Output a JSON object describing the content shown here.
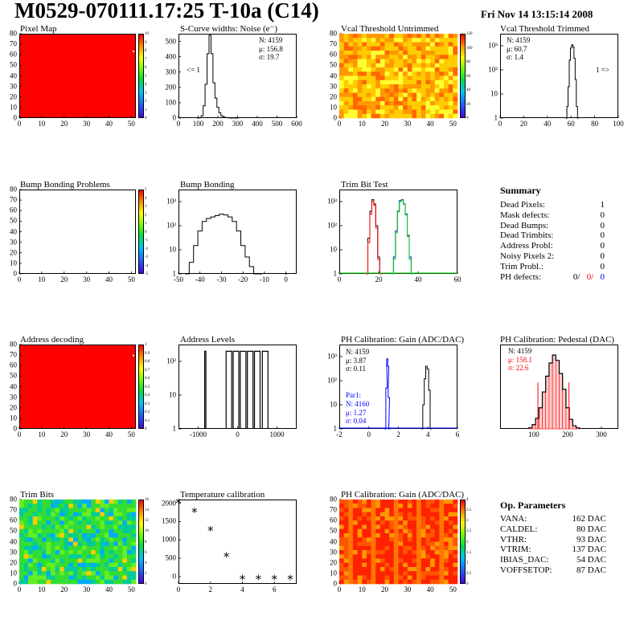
{
  "header": {
    "title": "M0529-070111.17:25 T-10a (C14)",
    "date": "Fri Nov 14 13:15:14 2008"
  },
  "panels": {
    "pixel_map": {
      "title": "Pixel Map"
    },
    "scurve": {
      "title": "S-Curve widths: Noise (e⁻)",
      "n": "N: 4159",
      "mu": "μ: 156.8",
      "sigma": "σ: 19.7",
      "underflow": "<= 1"
    },
    "vcal_untrimmed": {
      "title": "Vcal Threshold Untrimmed"
    },
    "vcal_trimmed": {
      "title": "Vcal Threshold Trimmed",
      "n": "N: 4159",
      "mu": "μ: 60.7",
      "sigma": "σ:  1.4",
      "overflow": "1 =>"
    },
    "bump_problems": {
      "title": "Bump Bonding Problems"
    },
    "bump_bonding": {
      "title": "Bump Bonding"
    },
    "trim_bit_test": {
      "title": "Trim Bit Test"
    },
    "address_decoding": {
      "title": "Address decoding"
    },
    "address_levels": {
      "title": "Address Levels"
    },
    "ph_gain": {
      "title": "PH Calibration: Gain (ADC/DAC)",
      "n": "N: 4159",
      "mu": "μ: 3.87",
      "sigma": "σ: 0.11",
      "par1_label": "Par1:",
      "par1_n": "N: 4160",
      "par1_mu": "μ: 1.27",
      "par1_sigma": "σ: 0.04"
    },
    "ph_pedestal": {
      "title": "PH Calibration: Pedestal (DAC)",
      "n": "N: 4159",
      "mu": "μ: 158.1",
      "sigma": "σ: 22.6"
    },
    "trim_bits": {
      "title": "Trim Bits"
    },
    "temperature": {
      "title": "Temperature calibration"
    },
    "ph_gain_map": {
      "title": "PH Calibration: Gain (ADC/DAC)"
    }
  },
  "summary": {
    "heading": "Summary",
    "rows": [
      {
        "label": "Dead Pixels:",
        "value": "1"
      },
      {
        "label": "Mask defects:",
        "value": "0"
      },
      {
        "label": "Dead Bumps:",
        "value": "0"
      },
      {
        "label": "Dead Trimbits:",
        "value": "0"
      },
      {
        "label": "Address Probl:",
        "value": "0"
      },
      {
        "label": "Noisy Pixels 2:",
        "value": "0"
      },
      {
        "label": "Trim Probl.:",
        "value": "0"
      }
    ],
    "ph_label": "PH defects:",
    "ph_values": [
      "0/",
      "0/",
      "0"
    ]
  },
  "op_parameters": {
    "heading": "Op. Parameters",
    "rows": [
      {
        "label": "VANA:",
        "value": "162 DAC"
      },
      {
        "label": "CALDEL:",
        "value": "80 DAC"
      },
      {
        "label": "VTHR:",
        "value": "93 DAC"
      },
      {
        "label": "VTRIM:",
        "value": "137 DAC"
      },
      {
        "label": "IBIAS_DAC:",
        "value": "54 DAC"
      },
      {
        "label": "VOFFSETOP:",
        "value": "87 DAC"
      }
    ]
  },
  "colors": {
    "red": "#ff0000",
    "blue": "#0000ff",
    "green": "#00cc00",
    "line": "#000000"
  },
  "chart_data": [
    {
      "id": "pixel_map",
      "type": "heatmap",
      "title": "Pixel Map",
      "xlim": [
        0,
        52
      ],
      "ylim": [
        0,
        80
      ],
      "xticks": [
        "0",
        "10",
        "20",
        "30",
        "40",
        "50"
      ],
      "yticks": [
        "0",
        "10",
        "20",
        "30",
        "40",
        "50",
        "60",
        "70",
        "80"
      ],
      "zticks": [
        "0",
        "1",
        "2",
        "3",
        "4",
        "5",
        "6",
        "7",
        "8",
        "9",
        "10"
      ],
      "fill": "uniform red (all pixels responding)"
    },
    {
      "id": "scurve",
      "type": "bar",
      "title": "S-Curve widths: Noise (e⁻)",
      "xlim": [
        0,
        600
      ],
      "ylim": [
        0,
        550
      ],
      "xticks": [
        "0",
        "100",
        "200",
        "300",
        "400",
        "500",
        "600"
      ],
      "yticks": [
        "0",
        "100",
        "200",
        "300",
        "400",
        "500"
      ],
      "x": [
        100,
        110,
        120,
        130,
        140,
        150,
        160,
        170,
        180,
        190,
        200,
        210,
        220,
        230,
        240,
        250,
        260,
        270,
        280,
        290,
        300
      ],
      "values": [
        0,
        2,
        15,
        80,
        220,
        420,
        540,
        420,
        230,
        130,
        70,
        35,
        15,
        8,
        4,
        2,
        1,
        0,
        1,
        0,
        0
      ]
    },
    {
      "id": "vcal_untrimmed",
      "type": "heatmap",
      "title": "Vcal Threshold Untrimmed",
      "xlim": [
        0,
        52
      ],
      "ylim": [
        0,
        80
      ],
      "xticks": [
        "0",
        "10",
        "20",
        "30",
        "40",
        "50"
      ],
      "yticks": [
        "0",
        "10",
        "20",
        "30",
        "40",
        "50",
        "60",
        "70",
        "80"
      ],
      "zticks": [
        "0",
        "20",
        "40",
        "60",
        "80",
        "100",
        "120"
      ],
      "fill": "mostly orange/yellow noise"
    },
    {
      "id": "vcal_trimmed",
      "type": "bar",
      "title": "Vcal Threshold Trimmed",
      "log_y": true,
      "xlim": [
        0,
        100
      ],
      "xticks": [
        "0",
        "20",
        "40",
        "60",
        "80",
        "100"
      ],
      "yticks": [
        "1",
        "10",
        "10²",
        "10³"
      ],
      "x": [
        56,
        57,
        58,
        59,
        60,
        61,
        62,
        63,
        64,
        65,
        66
      ],
      "values": [
        1,
        3,
        20,
        250,
        800,
        1100,
        900,
        300,
        40,
        3,
        1
      ]
    },
    {
      "id": "bump_problems",
      "type": "heatmap",
      "title": "Bump Bonding Problems",
      "xlim": [
        0,
        52
      ],
      "ylim": [
        0,
        80
      ],
      "xticks": [
        "0",
        "10",
        "20",
        "30",
        "40",
        "50"
      ],
      "yticks": [
        "0",
        "10",
        "20",
        "30",
        "40",
        "50",
        "60",
        "70",
        "80"
      ],
      "zticks": [
        "-5",
        "-4",
        "-3",
        "-2",
        "-1",
        "0",
        "1",
        "2",
        "3",
        "4",
        "5"
      ],
      "fill": "empty"
    },
    {
      "id": "bump_bonding",
      "type": "bar",
      "title": "Bump Bonding",
      "log_y": true,
      "xlim": [
        -50,
        5
      ],
      "xticks": [
        "-50",
        "-40",
        "-30",
        "-20",
        "-10",
        "0"
      ],
      "yticks": [
        "1",
        "10",
        "10²",
        "10³"
      ],
      "x": [
        -46,
        -44,
        -42,
        -40,
        -38,
        -36,
        -34,
        -32,
        -30,
        -28,
        -26,
        -24,
        -22,
        -20,
        -18,
        -16,
        -14,
        -12,
        0
      ],
      "values": [
        1,
        3,
        15,
        60,
        150,
        200,
        230,
        260,
        300,
        280,
        230,
        150,
        60,
        15,
        5,
        2,
        1,
        1,
        1
      ]
    },
    {
      "id": "trim_bit_test",
      "type": "line",
      "title": "Trim Bit Test",
      "log_y": true,
      "xlim": [
        0,
        60
      ],
      "xticks": [
        "0",
        "20",
        "40",
        "60"
      ],
      "yticks": [
        "1",
        "10",
        "10²",
        "10³"
      ],
      "series": [
        {
          "color": "black",
          "x": [
            14,
            15,
            16,
            17,
            18,
            19,
            20,
            21
          ],
          "values": [
            1,
            30,
            400,
            1200,
            800,
            100,
            5,
            1
          ]
        },
        {
          "color": "red",
          "x": [
            14,
            15,
            16,
            17,
            18,
            19,
            20,
            21
          ],
          "values": [
            1,
            20,
            300,
            1000,
            700,
            80,
            4,
            1
          ]
        },
        {
          "color": "blue",
          "x": [
            27,
            28,
            29,
            30,
            31,
            32,
            33,
            34,
            35,
            36,
            37
          ],
          "values": [
            1,
            5,
            60,
            400,
            1100,
            1200,
            800,
            300,
            40,
            5,
            1
          ]
        },
        {
          "color": "green",
          "x": [
            27,
            28,
            29,
            30,
            31,
            32,
            33,
            34,
            35,
            36,
            37
          ],
          "values": [
            1,
            4,
            50,
            380,
            1000,
            1150,
            780,
            280,
            35,
            4,
            1
          ]
        }
      ]
    },
    {
      "id": "address_decoding",
      "type": "heatmap",
      "title": "Address decoding",
      "xlim": [
        0,
        52
      ],
      "ylim": [
        0,
        80
      ],
      "xticks": [
        "0",
        "10",
        "20",
        "30",
        "40",
        "50"
      ],
      "yticks": [
        "0",
        "10",
        "20",
        "30",
        "40",
        "50",
        "60",
        "70",
        "80"
      ],
      "zticks": [
        "0",
        "0.1",
        "0.2",
        "0.3",
        "0.4",
        "0.5",
        "0.6",
        "0.7",
        "0.8",
        "0.9",
        "1"
      ],
      "fill": "uniform red"
    },
    {
      "id": "address_levels",
      "type": "bar",
      "title": "Address Levels",
      "log_y": true,
      "xlim": [
        -1500,
        1500
      ],
      "xticks": [
        "-1000",
        "0",
        "1000"
      ],
      "yticks": [
        "1",
        "10",
        "10²"
      ],
      "peaks": [
        -820,
        -220,
        -40,
        140,
        320,
        500,
        700
      ],
      "peak_value": 200
    },
    {
      "id": "ph_gain",
      "type": "bar",
      "title": "PH Calibration: Gain (ADC/DAC)",
      "log_y": true,
      "xlim": [
        -2,
        6
      ],
      "xticks": [
        "-2",
        "0",
        "2",
        "4",
        "6"
      ],
      "yticks": [
        "1",
        "10",
        "10²",
        "10³"
      ],
      "series": [
        {
          "name": "Par1",
          "color": "blue",
          "x": [
            1.1,
            1.2,
            1.25,
            1.3,
            1.35,
            1.4
          ],
          "values": [
            1,
            50,
            800,
            400,
            20,
            1
          ]
        },
        {
          "color": "black",
          "x": [
            3.6,
            3.7,
            3.8,
            3.9,
            4.0,
            4.1,
            4.2
          ],
          "values": [
            1,
            10,
            120,
            400,
            300,
            40,
            1
          ]
        }
      ]
    },
    {
      "id": "ph_pedestal",
      "type": "bar",
      "title": "PH Calibration: Pedestal (DAC)",
      "xlim": [
        0,
        350
      ],
      "xticks": [
        "100",
        "200",
        "300"
      ],
      "x": [
        90,
        100,
        110,
        120,
        130,
        140,
        150,
        160,
        170,
        180,
        190,
        200,
        210,
        220,
        230
      ],
      "values": [
        2,
        8,
        20,
        40,
        70,
        100,
        125,
        140,
        130,
        105,
        75,
        40,
        18,
        6,
        2
      ]
    },
    {
      "id": "trim_bits",
      "type": "heatmap",
      "title": "Trim Bits",
      "xlim": [
        0,
        52
      ],
      "ylim": [
        0,
        80
      ],
      "xticks": [
        "0",
        "10",
        "20",
        "30",
        "40",
        "50"
      ],
      "yticks": [
        "0",
        "10",
        "20",
        "30",
        "40",
        "50",
        "60",
        "70",
        "80"
      ],
      "zticks": [
        "0",
        "2",
        "4",
        "6",
        "8",
        "10",
        "12",
        "14",
        "16"
      ],
      "fill": "mostly green/cyan"
    },
    {
      "id": "temperature",
      "type": "scatter",
      "title": "Temperature calibration",
      "xlim": [
        0,
        7.4
      ],
      "ylim": [
        -200,
        2100
      ],
      "xticks": [
        "0",
        "2",
        "4",
        "6"
      ],
      "yticks": [
        "0",
        "500",
        "1000",
        "1500",
        "2000"
      ],
      "x": [
        0,
        1,
        2,
        3,
        4,
        5,
        6,
        7
      ],
      "values": [
        2000,
        1750,
        1250,
        530,
        -80,
        -80,
        -80,
        -80
      ]
    },
    {
      "id": "ph_gain_map",
      "type": "heatmap",
      "title": "PH Calibration: Gain (ADC/DAC)",
      "xlim": [
        0,
        52
      ],
      "ylim": [
        0,
        80
      ],
      "xticks": [
        "0",
        "10",
        "20",
        "30",
        "40",
        "50"
      ],
      "yticks": [
        "0",
        "10",
        "20",
        "30",
        "40",
        "50",
        "60",
        "70",
        "80"
      ],
      "zticks": [
        "0",
        "0.5",
        "1",
        "1.5",
        "2",
        "2.5",
        "3",
        "3.5",
        "4"
      ],
      "fill": "mostly red/orange columns"
    }
  ]
}
